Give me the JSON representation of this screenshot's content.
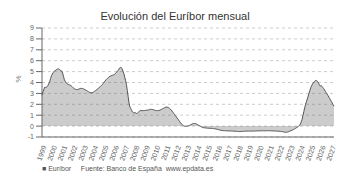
{
  "chart_data": {
    "type": "area",
    "title": "Evolución del Euríbor mensual",
    "ylabel": "%",
    "annotations": [
      "■ Euríbor     Fuente: Banco de España  www.epdata.es"
    ],
    "color": "#555555",
    "grid": true,
    "ylim": [
      -1,
      9
    ],
    "yticks": [
      -1,
      0,
      1,
      2,
      3,
      4,
      5,
      6,
      7,
      8,
      9
    ],
    "categories": [
      "1999",
      null,
      null,
      null,
      null,
      null,
      null,
      null,
      null,
      null,
      null,
      null,
      "2000",
      null,
      null,
      null,
      null,
      null,
      null,
      null,
      null,
      null,
      null,
      null,
      "2001",
      null,
      null,
      null,
      null,
      null,
      null,
      null,
      null,
      null,
      null,
      null,
      "2002",
      null,
      null,
      null,
      null,
      null,
      null,
      null,
      null,
      null,
      null,
      null,
      "2003",
      null,
      null,
      null,
      null,
      null,
      null,
      null,
      null,
      null,
      null,
      null,
      "2004",
      null,
      null,
      null,
      null,
      null,
      null,
      null,
      null,
      null,
      null,
      null,
      "2005",
      null,
      null,
      null,
      null,
      null,
      null,
      null,
      null,
      null,
      null,
      null,
      "2006",
      null,
      null,
      null,
      null,
      null,
      null,
      null,
      null,
      null,
      null,
      null,
      "2007",
      null,
      null,
      null,
      null,
      null,
      null,
      null,
      null,
      null,
      null,
      null,
      "2008",
      null,
      null,
      null,
      null,
      null,
      null,
      null,
      null,
      null,
      null,
      null,
      "2009",
      null,
      null,
      null,
      null,
      null,
      null,
      null,
      null,
      null,
      null,
      null,
      "2010",
      null,
      null,
      null,
      null,
      null,
      null,
      null,
      null,
      null,
      null,
      null,
      "2011",
      null,
      null,
      null,
      null,
      null,
      null,
      null,
      null,
      null,
      null,
      null,
      "2012",
      null,
      null,
      null,
      null,
      null,
      null,
      null,
      null,
      null,
      null,
      null,
      "2013",
      null,
      null,
      null,
      null,
      null,
      null,
      null,
      null,
      null,
      null,
      null,
      "2014",
      null,
      null,
      null,
      null,
      null,
      null,
      null,
      null,
      null,
      null,
      null,
      "2015",
      null,
      null,
      null,
      null,
      null,
      null,
      null,
      null,
      null,
      null,
      null,
      "2016",
      null,
      null,
      null,
      null,
      null,
      null,
      null,
      null,
      null,
      null,
      null,
      "2017",
      null,
      null,
      null,
      null,
      null,
      null,
      null,
      null,
      null,
      null,
      null,
      "2018",
      null,
      null,
      null,
      null,
      null,
      null,
      null,
      null,
      null,
      null,
      null,
      "2019",
      null,
      null,
      null,
      null,
      null,
      null,
      null,
      null,
      null,
      null,
      null,
      "2020",
      null,
      null,
      null,
      null,
      null,
      null,
      null,
      null,
      null,
      null,
      null,
      "2021",
      null,
      null,
      null,
      null,
      null,
      null,
      null,
      null,
      null,
      null,
      null,
      "2022",
      null,
      null,
      null,
      null,
      null,
      null,
      null,
      null,
      null,
      null,
      null,
      "2023",
      null,
      null,
      null,
      null,
      null,
      null,
      null,
      null,
      null,
      null,
      null,
      "2024",
      null,
      null,
      null,
      null,
      null,
      null,
      null,
      null,
      null,
      null,
      null,
      "2025",
      null,
      null,
      null,
      null,
      null,
      null,
      null,
      null,
      null,
      null,
      null,
      "2026",
      null,
      null,
      null,
      null,
      null,
      null,
      null,
      null,
      null,
      null,
      null,
      "2027",
      null,
      null,
      null
    ],
    "values": [
      2.83,
      3.14,
      3.31,
      3.56,
      3.54,
      3.56,
      3.62,
      3.75,
      3.91,
      4.1,
      4.38,
      4.63,
      4.78,
      4.91,
      5.02,
      5.1,
      5.12,
      5.19,
      5.24,
      5.25,
      5.21,
      5.13,
      5.09,
      5.04,
      4.86,
      4.54,
      4.26,
      4.1,
      3.97,
      3.89,
      3.84,
      3.81,
      3.78,
      3.74,
      3.69,
      3.62,
      3.53,
      3.46,
      3.41,
      3.37,
      3.35,
      3.35,
      3.37,
      3.4,
      3.44,
      3.46,
      3.46,
      3.45,
      3.42,
      3.38,
      3.34,
      3.3,
      3.25,
      3.2,
      3.15,
      3.1,
      3.07,
      3.06,
      3.06,
      3.09,
      3.13,
      3.19,
      3.25,
      3.31,
      3.37,
      3.44,
      3.51,
      3.58,
      3.65,
      3.73,
      3.81,
      3.91,
      4.02,
      4.12,
      4.22,
      4.3,
      4.38,
      4.46,
      4.52,
      4.57,
      4.61,
      4.64,
      4.67,
      4.69,
      4.73,
      4.8,
      4.89,
      4.98,
      5.07,
      5.18,
      5.32,
      5.39,
      5.38,
      5.25,
      5.05,
      4.82,
      4.49,
      4.2,
      3.82,
      3.28,
      2.72,
      2.13,
      1.77,
      1.61,
      1.45,
      1.3,
      1.23,
      1.23,
      1.22,
      1.21,
      1.14,
      1.23,
      1.29,
      1.35,
      1.42,
      1.43,
      1.42,
      1.42,
      1.42,
      1.43,
      1.44,
      1.45,
      1.46,
      1.47,
      1.49,
      1.52,
      1.54,
      1.54,
      1.53,
      1.51,
      1.48,
      1.45,
      1.43,
      1.42,
      1.42,
      1.42,
      1.44,
      1.47,
      1.51,
      1.55,
      1.59,
      1.63,
      1.67,
      1.71,
      1.74,
      1.74,
      1.72,
      1.69,
      1.63,
      1.56,
      1.47,
      1.37,
      1.27,
      1.16,
      1.05,
      0.95,
      0.84,
      0.73,
      0.62,
      0.51,
      0.4,
      0.29,
      0.19,
      0.11,
      0.05,
      0.01,
      -0.01,
      -0.01,
      -0.01,
      0.0,
      0.02,
      0.05,
      0.09,
      0.14,
      0.18,
      0.22,
      0.24,
      0.24,
      0.23,
      0.2,
      0.16,
      0.11,
      0.07,
      0.03,
      -0.02,
      -0.07,
      -0.1,
      -0.13,
      -0.15,
      -0.16,
      -0.17,
      -0.18,
      -0.19,
      -0.19,
      -0.2,
      -0.2,
      -0.21,
      -0.21,
      -0.22,
      -0.23,
      -0.24,
      -0.25,
      -0.27,
      -0.29,
      -0.31,
      -0.33,
      -0.35,
      -0.37,
      -0.39,
      -0.4,
      -0.41,
      -0.42,
      -0.42,
      -0.43,
      -0.43,
      -0.44,
      -0.44,
      -0.44,
      -0.45,
      -0.45,
      -0.45,
      -0.46,
      -0.46,
      -0.47,
      -0.47,
      -0.48,
      -0.48,
      -0.49,
      -0.5,
      -0.5,
      -0.5,
      -0.5,
      -0.49,
      -0.48,
      -0.48,
      -0.47,
      -0.47,
      -0.46,
      -0.46,
      -0.46,
      -0.46,
      -0.46,
      -0.46,
      -0.46,
      -0.46,
      -0.46,
      -0.45,
      -0.45,
      -0.45,
      -0.44,
      -0.44,
      -0.44,
      -0.44,
      -0.43,
      -0.43,
      -0.43,
      -0.43,
      -0.43,
      -0.43,
      -0.43,
      -0.43,
      -0.42,
      -0.42,
      -0.42,
      -0.43,
      -0.43,
      -0.43,
      -0.44,
      -0.44,
      -0.45,
      -0.45,
      -0.45,
      -0.46,
      -0.46,
      -0.47,
      -0.47,
      -0.48,
      -0.49,
      -0.5,
      -0.51,
      -0.52,
      -0.54,
      -0.56,
      -0.57,
      -0.57,
      -0.55,
      -0.52,
      -0.49,
      -0.45,
      -0.42,
      -0.39,
      -0.35,
      -0.31,
      -0.27,
      -0.22,
      -0.17,
      -0.12,
      -0.06,
      0.0,
      0.05,
      0.19,
      0.39,
      0.63,
      0.99,
      1.34,
      1.68,
      2.0,
      2.23,
      2.49,
      2.75,
      3.02,
      3.27,
      3.53,
      3.69,
      3.85,
      3.97,
      4.07,
      4.15,
      4.19,
      4.16,
      4.08,
      3.94,
      3.79,
      3.68,
      3.71,
      3.65,
      3.54,
      3.44,
      3.32,
      3.19,
      3.07,
      2.94,
      2.81,
      2.67,
      2.53,
      2.39,
      2.25,
      2.11,
      1.97,
      1.83
    ]
  }
}
